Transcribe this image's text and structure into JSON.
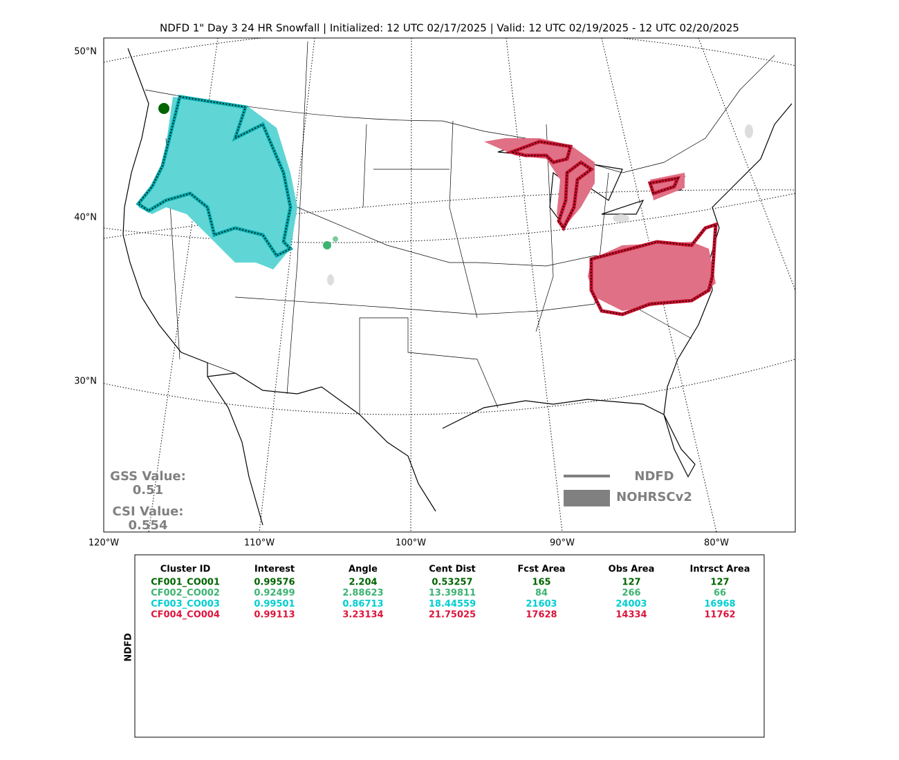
{
  "title": "NDFD 1\" Day 3 24 HR Snowfall | Initialized: 12 UTC 02/17/2025 | Valid: 12 UTC 02/19/2025 - 12 UTC 02/20/2025",
  "map": {
    "lat_labels": [
      "50°N",
      "40°N",
      "30°N"
    ],
    "lon_labels": [
      "120°W",
      "110°W",
      "100°W",
      "90°W",
      "80°W"
    ],
    "gss_label": "GSS Value:",
    "gss_value": 0.51,
    "csi_label": "CSI Value:",
    "csi_value": 0.554,
    "legend": [
      "NDFD",
      "NOHRSCv2"
    ]
  },
  "table": {
    "side_label": "NDFD",
    "headers": [
      "Cluster ID",
      "Interest",
      "Angle",
      "Cent Dist",
      "Fcst Area",
      "Obs Area",
      "Intrsct Area"
    ],
    "rows": [
      {
        "color": "#006400",
        "cells": [
          "CF001_CO001",
          0.99576,
          2.204,
          0.53257,
          165,
          127,
          127
        ]
      },
      {
        "color": "#3cb371",
        "cells": [
          "CF002_CO002",
          0.92499,
          2.88623,
          13.39811,
          84,
          266,
          66
        ]
      },
      {
        "color": "#00ced1",
        "cells": [
          "CF003_CO003",
          0.99501,
          0.86713,
          18.44559,
          21603,
          24003,
          16968
        ]
      },
      {
        "color": "#dc143c",
        "cells": [
          "CF004_CO004",
          0.99113,
          3.23134,
          21.75025,
          17628,
          14334,
          11762
        ]
      }
    ]
  }
}
